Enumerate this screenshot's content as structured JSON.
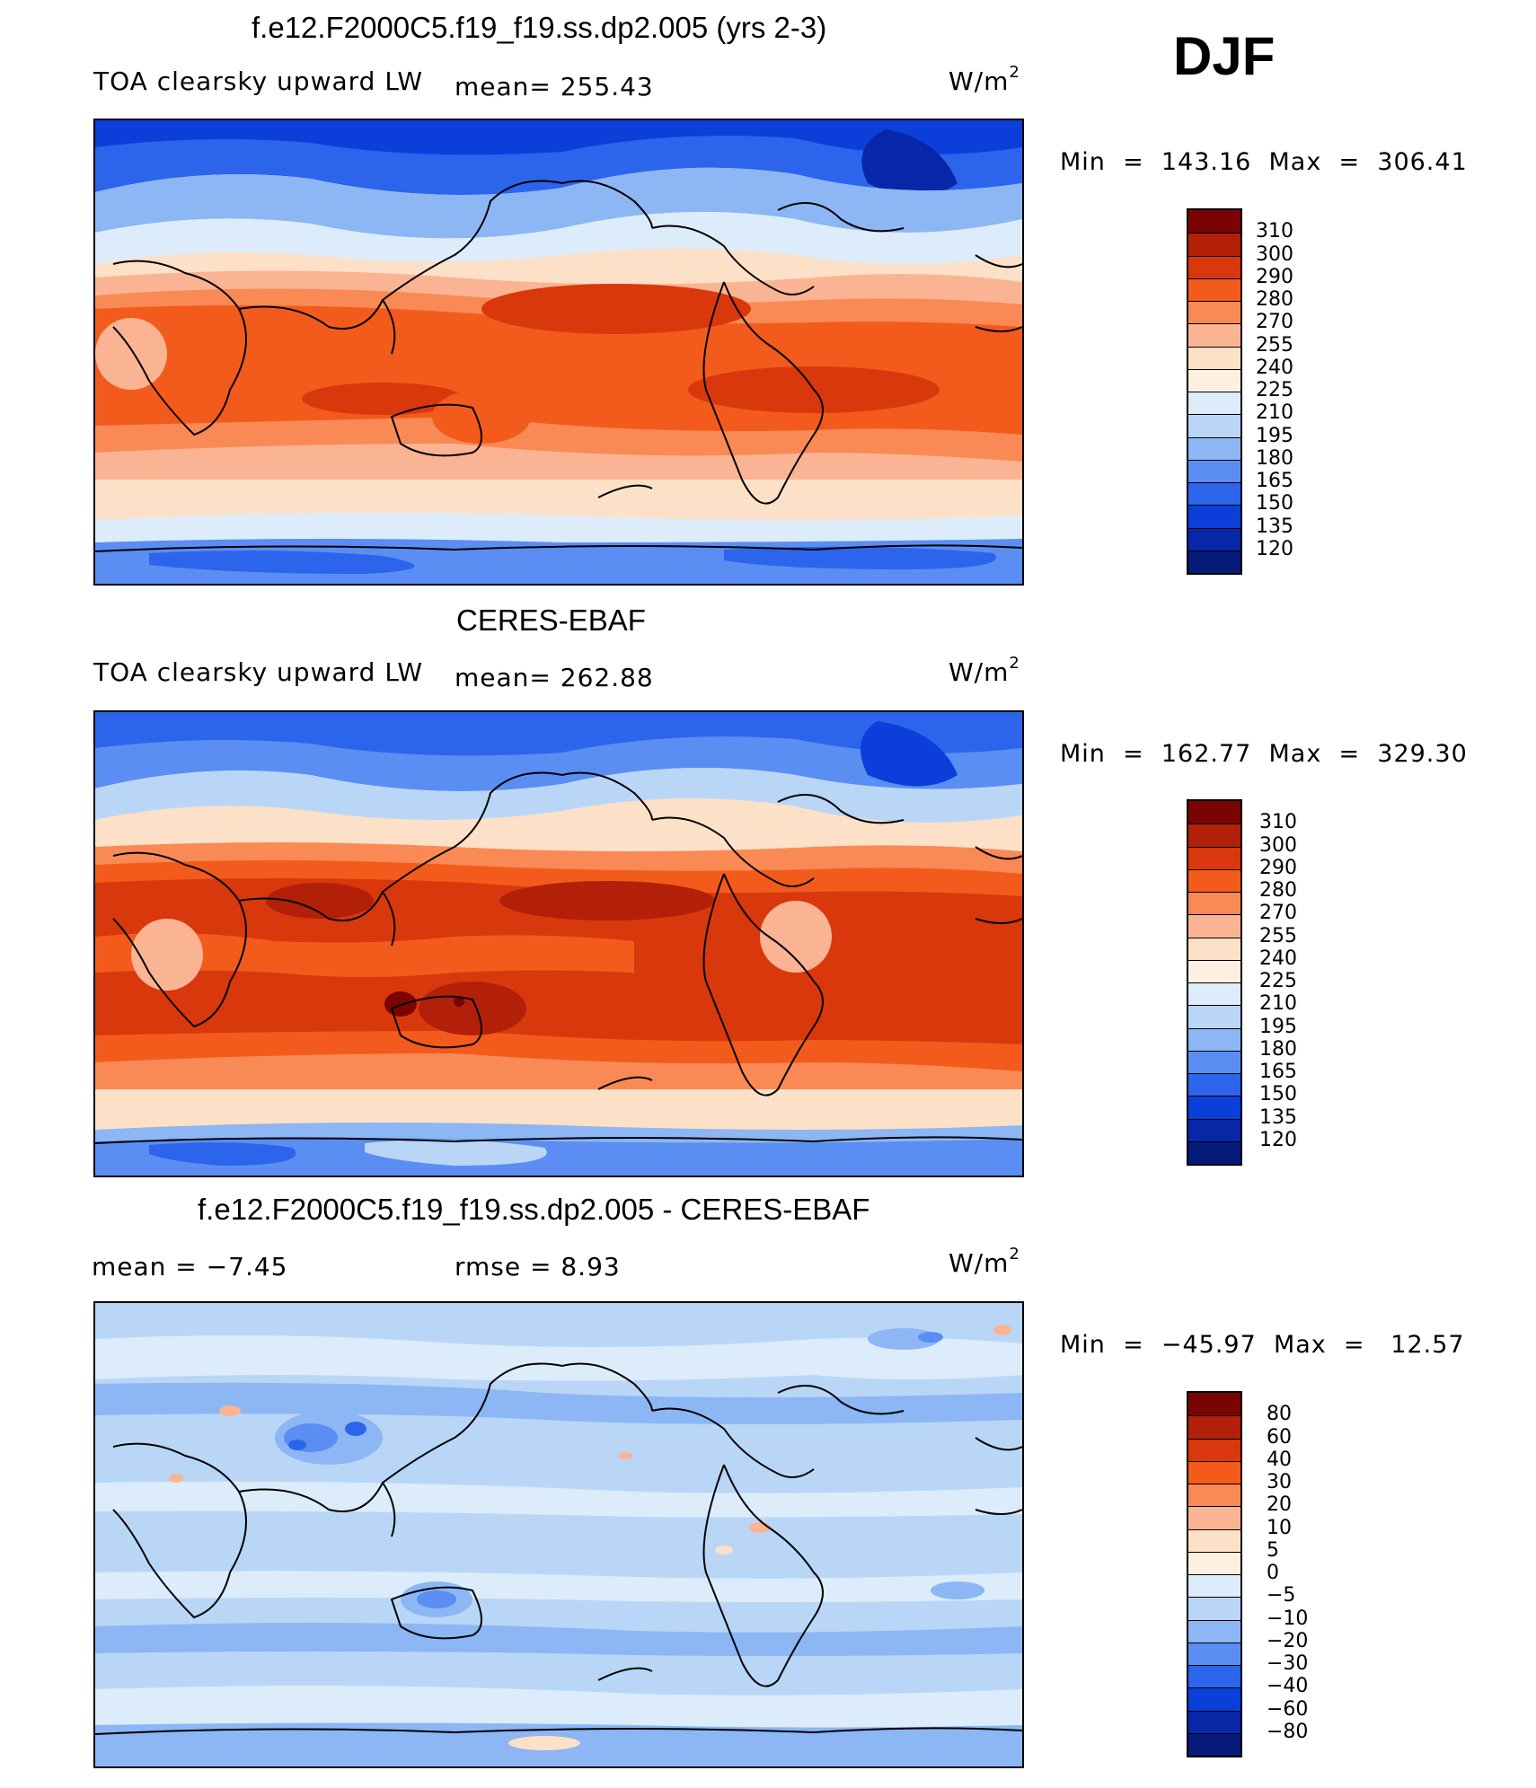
{
  "season": "DJF",
  "panels": [
    {
      "title": "f.e12.F2000C5.f19_f19.ss.dp2.005 (yrs 2-3)",
      "left_text": "TOA clearsky upward LW",
      "mid_text": "mean= 255.43",
      "units_base": "W/m",
      "units_sup": "2",
      "minmax": "Min  =  143.16  Max  =  306.41",
      "colorbar_labels": [
        "310",
        "300",
        "290",
        "280",
        "270",
        "255",
        "240",
        "225",
        "210",
        "195",
        "180",
        "165",
        "150",
        "135",
        "120"
      ]
    },
    {
      "title": "CERES-EBAF",
      "left_text": "TOA clearsky upward LW",
      "mid_text": "mean= 262.88",
      "units_base": "W/m",
      "units_sup": "2",
      "minmax": "Min  =  162.77  Max  =  329.30",
      "colorbar_labels": [
        "310",
        "300",
        "290",
        "280",
        "270",
        "255",
        "240",
        "225",
        "210",
        "195",
        "180",
        "165",
        "150",
        "135",
        "120"
      ]
    },
    {
      "title": "f.e12.F2000C5.f19_f19.ss.dp2.005 - CERES-EBAF",
      "left_text": "mean =   −7.45",
      "mid_text": "rmse =    8.93",
      "units_base": "W/m",
      "units_sup": "2",
      "minmax": "Min  =  −45.97  Max  =   12.57",
      "colorbar_labels": [
        "80",
        "60",
        "40",
        "30",
        "20",
        "10",
        "5",
        "0",
        "−5",
        "−10",
        "−20",
        "−30",
        "−40",
        "−60",
        "−80"
      ]
    }
  ],
  "colors": {
    "abs_scale": [
      "#7a0403",
      "#b32009",
      "#d9380c",
      "#f35b1c",
      "#f98a55",
      "#fbb493",
      "#fde0c8",
      "#fdf0e0",
      "#dcecfb",
      "#bad6f7",
      "#8cb6f4",
      "#5a8ef2",
      "#2c64ec",
      "#0c3fd9",
      "#0727a8",
      "#061a7a"
    ],
    "diff_scale": [
      "#7a0403",
      "#b32009",
      "#d9380c",
      "#f35b1c",
      "#f98a55",
      "#fbb493",
      "#fde0c8",
      "#fdf0e0",
      "#dcecfb",
      "#bad6f7",
      "#8cb6f4",
      "#5a8ef2",
      "#2c64ec",
      "#0c3fd9",
      "#0727a8",
      "#061a7a"
    ],
    "coastline": "#000000"
  }
}
